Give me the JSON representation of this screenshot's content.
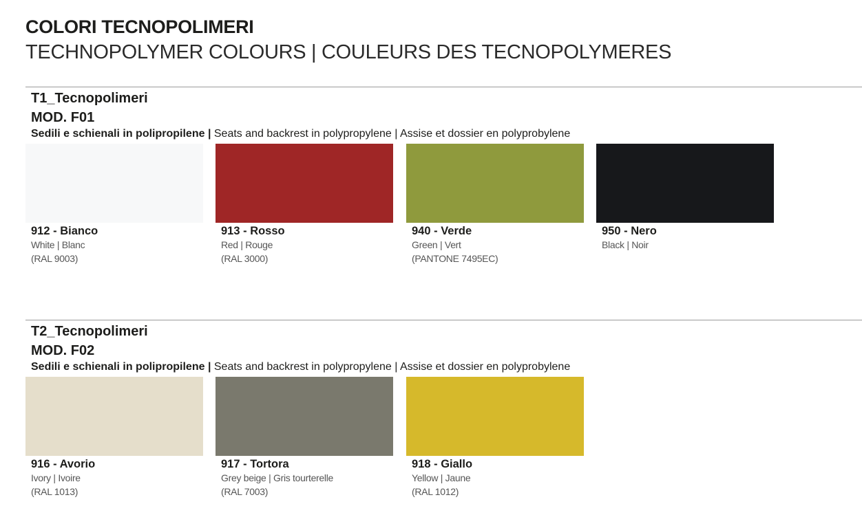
{
  "title": "COLORI TECNOPOLIMERI",
  "subtitle": "TECHNOPOLYMER COLOURS | COULEURS DES TECNOPOLYMERES",
  "sections": [
    {
      "heading": "T1_Tecnopolimeri",
      "model": "MOD. F01",
      "desc_it": "Sedili e schienali in polipropilene |",
      "desc_en": " Seats and backrest in polypropylene | Assise et dossier en polyprobylene",
      "swatches": [
        {
          "name": "912 - Bianco",
          "translation": "White | Blanc",
          "ref": "(RAL 9003)",
          "color": "#f7f8f9"
        },
        {
          "name": "913 - Rosso",
          "translation": "Red | Rouge",
          "ref": "(RAL 3000)",
          "color": "#9f2626"
        },
        {
          "name": "940 - Verde",
          "translation": "Green | Vert",
          "ref": "(PANTONE 7495EC)",
          "color": "#8f9a3d"
        },
        {
          "name": "950 - Nero",
          "translation": "Black | Noir",
          "color": "#17181b"
        }
      ]
    },
    {
      "heading": "T2_Tecnopolimeri",
      "model": "MOD. F02",
      "desc_it": "Sedili e schienali in polipropilene |",
      "desc_en": " Seats and backrest in polypropylene | Assise et dossier en polyprobylene",
      "swatches": [
        {
          "name": "916 - Avorio",
          "translation": "Ivory | Ivoire",
          "ref": "(RAL 1013)",
          "color": "#e5decb"
        },
        {
          "name": "917 - Tortora",
          "translation": "Grey beige | Gris tourterelle",
          "ref": "(RAL 7003)",
          "color": "#7a796d"
        },
        {
          "name": "918 - Giallo",
          "translation": "Yellow | Jaune",
          "ref": "(RAL 1012)",
          "color": "#d6b92b"
        }
      ]
    }
  ]
}
